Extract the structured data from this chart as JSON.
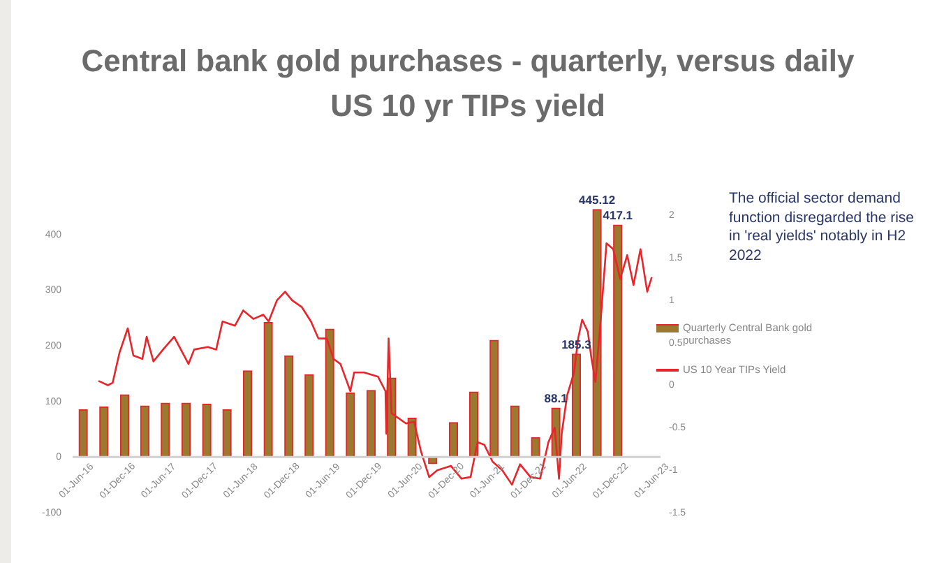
{
  "chart_data": {
    "type": "bar",
    "title": "Central bank gold purchases - quarterly, versus daily US 10 yr TIPs yield",
    "annotations": [
      "The official sector demand function disregarded the rise in 'real yields' notably in H2 2022"
    ],
    "legend": "right",
    "xlim": [
      "2016-05-15",
      "2023-07-10"
    ],
    "xticks": [
      {
        "value": "2016-06-01",
        "label": "01-Jun-16"
      },
      {
        "value": "2016-12-01",
        "label": "01-Dec-16"
      },
      {
        "value": "2017-06-01",
        "label": "01-Jun-17"
      },
      {
        "value": "2017-12-01",
        "label": "01-Dec-17"
      },
      {
        "value": "2018-06-01",
        "label": "01-Jun-18"
      },
      {
        "value": "2018-12-01",
        "label": "01-Dec-18"
      },
      {
        "value": "2019-06-01",
        "label": "01-Jun-19"
      },
      {
        "value": "2019-12-01",
        "label": "01-Dec-19"
      },
      {
        "value": "2020-06-01",
        "label": "01-Jun-20"
      },
      {
        "value": "2020-12-01",
        "label": "01-Dec-20"
      },
      {
        "value": "2021-06-01",
        "label": "01-Jun-21"
      },
      {
        "value": "2021-12-01",
        "label": "01-Dec-21"
      },
      {
        "value": "2022-06-01",
        "label": "01-Jun-22"
      },
      {
        "value": "2022-12-01",
        "label": "01-Dec-22"
      },
      {
        "value": "2023-06-01",
        "label": "01-Jun-23"
      }
    ],
    "ylim": [
      -100,
      450
    ],
    "yticks": [
      -100,
      0,
      100,
      200,
      300,
      400
    ],
    "y2lim": [
      -1.5,
      2.1
    ],
    "y2ticks": [
      -1.5,
      -1,
      -0.5,
      0,
      0.5,
      1,
      1.5,
      2
    ],
    "series": [
      {
        "type": "bar",
        "name": "Quarterly Central Bank gold purchases",
        "color": "#9b7a30",
        "x": [
          "2016-07",
          "2016-10",
          "2017-01",
          "2017-04",
          "2017-07",
          "2017-10",
          "2018-01",
          "2018-04",
          "2018-07",
          "2018-10",
          "2019-01",
          "2019-04",
          "2019-07",
          "2019-10",
          "2020-01",
          "2020-04",
          "2020-07",
          "2020-10",
          "2021-01",
          "2021-04",
          "2021-07",
          "2021-10",
          "2022-01",
          "2022-04",
          "2022-07",
          "2022-10",
          "2023-01"
        ],
        "values": [
          85,
          90,
          112,
          92,
          97,
          97,
          95,
          85,
          155,
          242,
          182,
          148,
          230,
          115,
          120,
          142,
          70,
          -12,
          62,
          117,
          210,
          92,
          35,
          88.1,
          185.3,
          445.12,
          417.1
        ],
        "value_labels": [
          null,
          null,
          null,
          null,
          null,
          null,
          null,
          null,
          null,
          null,
          null,
          null,
          null,
          null,
          null,
          null,
          null,
          null,
          null,
          null,
          null,
          null,
          null,
          "88.1",
          "185.3",
          "445.12",
          "417.1"
        ]
      },
      {
        "type": "line",
        "axis": "y2",
        "name": "US 10 Year TIPs Yield",
        "color": "#e8252a",
        "x": [
          "2016-09-07",
          "2016-10-19",
          "2016-11-09",
          "2016-12-09",
          "2017-01-15",
          "2017-02-09",
          "2017-03-21",
          "2017-04-09",
          "2017-05-09",
          "2017-06-21",
          "2017-08-09",
          "2017-10-12",
          "2017-11-06",
          "2018-01-06",
          "2018-02-12",
          "2018-03-12",
          "2018-05-06",
          "2018-06-12",
          "2018-07-27",
          "2018-09-09",
          "2018-10-03",
          "2018-11-09",
          "2018-12-15",
          "2019-01-15",
          "2019-02-27",
          "2019-04-09",
          "2019-05-12",
          "2019-06-18",
          "2019-07-18",
          "2019-08-18",
          "2019-10-01",
          "2019-10-18",
          "2019-12-01",
          "2020-02-01",
          "2020-03-05",
          "2020-03-09",
          "2020-03-19",
          "2020-04-01",
          "2020-06-04",
          "2020-07-10",
          "2020-08-10",
          "2020-09-15",
          "2020-10-21",
          "2020-12-21",
          "2021-02-06",
          "2021-03-18",
          "2021-04-18",
          "2021-05-18",
          "2021-06-24",
          "2021-08-06",
          "2021-09-18",
          "2021-10-24",
          "2021-12-09",
          "2022-01-21",
          "2022-02-27",
          "2022-03-27",
          "2022-04-15",
          "2022-04-27",
          "2022-05-21",
          "2022-06-21",
          "2022-07-09",
          "2022-07-27",
          "2022-08-21",
          "2022-09-06",
          "2022-09-24",
          "2022-10-18",
          "2022-11-12",
          "2022-12-12",
          "2023-01-12",
          "2023-02-12",
          "2023-03-12",
          "2023-04-12",
          "2023-05-12",
          "2023-06-01"
        ],
        "values": [
          0.05,
          0.0,
          0.03,
          0.38,
          0.67,
          0.35,
          0.31,
          0.57,
          0.28,
          0.42,
          0.57,
          0.25,
          0.42,
          0.45,
          0.42,
          0.75,
          0.7,
          0.88,
          0.78,
          0.83,
          0.75,
          1.0,
          1.1,
          1.0,
          0.92,
          0.75,
          0.55,
          0.55,
          0.31,
          0.25,
          -0.07,
          0.15,
          0.15,
          0.1,
          -0.07,
          -0.57,
          0.55,
          -0.33,
          -0.45,
          -0.43,
          -0.78,
          -1.08,
          -1.0,
          -0.95,
          -1.1,
          -1.08,
          -0.67,
          -0.7,
          -0.9,
          -1.0,
          -1.17,
          -0.93,
          -1.08,
          -1.1,
          -0.67,
          -0.5,
          -1.1,
          -0.57,
          -0.12,
          0.15,
          0.55,
          0.77,
          0.63,
          0.32,
          0.04,
          0.8,
          1.67,
          1.6,
          1.25,
          1.53,
          1.18,
          1.6,
          1.1,
          1.27
        ]
      }
    ]
  }
}
